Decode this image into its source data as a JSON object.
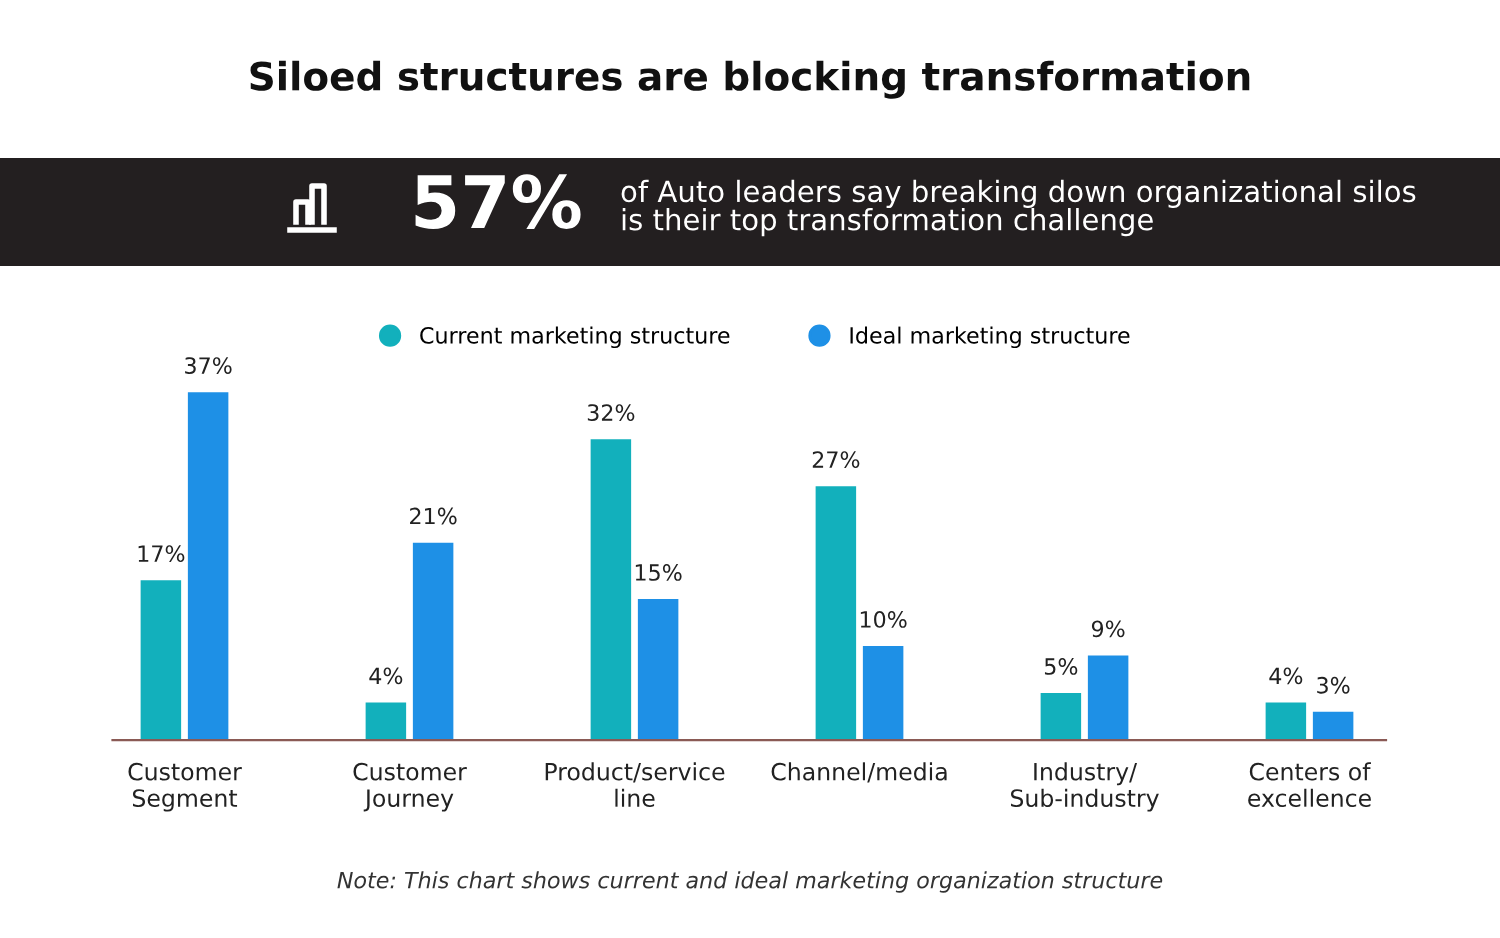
{
  "chart_data": {
    "type": "bar",
    "title": "Siloed structures are blocking transformation",
    "annotations": [
      "57%",
      "of Auto leaders say breaking down organizational silos\nis their top transformation challenge",
      "Note: This chart shows current and ideal marketing organization structure"
    ],
    "categories": [
      "Customer\nSegment",
      "Customer\nJourney",
      "Product/service\nline",
      "Channel/media",
      "Industry/\nSub-industry",
      "Centers of\nexcellence"
    ],
    "series": [
      {
        "name": "Current marketing structure",
        "color": "#12b0bc",
        "values": [
          17,
          4,
          32,
          27,
          5,
          4
        ],
        "value_labels": [
          "17%",
          "4%",
          "32%",
          "27%",
          "5%",
          "4%"
        ]
      },
      {
        "name": "Ideal marketing structure",
        "color": "#1e90e6",
        "values": [
          37,
          21,
          15,
          10,
          9,
          3
        ],
        "value_labels": [
          "37%",
          "21%",
          "15%",
          "10%",
          "9%",
          "3%"
        ]
      }
    ],
    "legend": "top",
    "grid": false
  }
}
